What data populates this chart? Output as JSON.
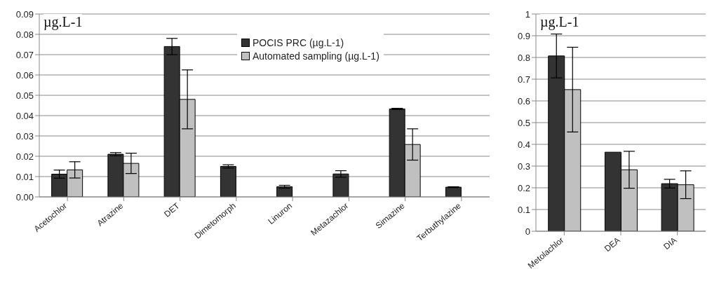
{
  "chart_data": [
    {
      "type": "bar",
      "ylabel": "µg.L-1",
      "categories": [
        "Acetochlor",
        "Atrazine",
        "DET",
        "Dimetomorph",
        "Linuron",
        "Metazachlor",
        "Simazine",
        "Terbuthylazine"
      ],
      "series": [
        {
          "name": "POCIS PRC (µg.L-1)",
          "color": "#333333",
          "values": [
            0.0112,
            0.021,
            0.074,
            0.015,
            0.005,
            0.0113,
            0.0433,
            0.0048
          ],
          "errors": [
            0.002,
            0.0008,
            0.004,
            0.0008,
            0.0007,
            0.0016,
            0.0003,
            0.0002
          ]
        },
        {
          "name": "Automated sampling (µg.L-1)",
          "color": "#c0c0c0",
          "values": [
            0.0133,
            0.0165,
            0.048,
            0,
            0,
            0,
            0.0258,
            0
          ],
          "errors": [
            0.004,
            0.005,
            0.0145,
            null,
            null,
            null,
            0.0077,
            null
          ]
        }
      ],
      "ylim": [
        0,
        0.09
      ],
      "yticks": [
        {
          "value": 0,
          "label": "0.00"
        },
        0.01,
        0.02,
        0.03,
        0.04,
        0.05,
        0.06,
        0.07,
        0.08,
        0.09
      ],
      "grid": "y",
      "legend": "top"
    },
    {
      "type": "bar",
      "ylabel": "µg.L-1",
      "categories": [
        "Metolachlor",
        "DEA",
        "DIA"
      ],
      "series": [
        {
          "color": "#333333",
          "values": [
            0.807,
            0.364,
            0.219
          ],
          "errors": [
            0.101,
            null,
            0.02
          ]
        },
        {
          "color": "#c0c0c0",
          "values": [
            0.652,
            0.283,
            0.214
          ],
          "errors": [
            0.195,
            0.085,
            0.064
          ]
        }
      ],
      "ylim": [
        0,
        1
      ],
      "yticks": [
        0,
        0.1,
        0.2,
        0.3,
        0.4,
        0.5,
        0.6,
        0.7,
        0.8,
        0.9,
        1
      ],
      "grid": "y"
    }
  ]
}
